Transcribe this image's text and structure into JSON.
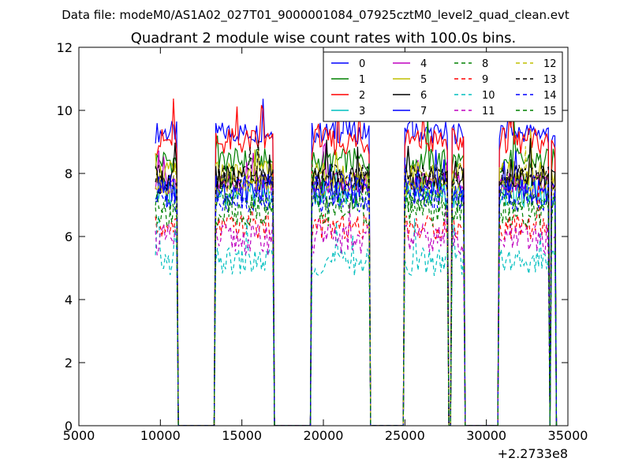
{
  "chart_data": {
    "type": "line",
    "suptitle": "Data file: modeM0/AS1A02_027T01_9000001084_07925cztM0_level2_quad_clean.evt",
    "title": "Quadrant 2 module wise count rates with 100.0s bins.",
    "xlabel": "",
    "ylabel": "",
    "xlim": [
      5000,
      35000
    ],
    "ylim": [
      0,
      12
    ],
    "x_ticks": [
      5000,
      10000,
      15000,
      20000,
      25000,
      30000,
      35000
    ],
    "x_tick_labels": [
      "5000",
      "10000",
      "15000",
      "20000",
      "25000",
      "30000",
      "35000"
    ],
    "y_ticks": [
      0,
      2,
      4,
      6,
      8,
      10,
      12
    ],
    "y_tick_labels": [
      "0",
      "2",
      "4",
      "6",
      "8",
      "10",
      "12"
    ],
    "x_offset_label": "+2.2733e8",
    "grid": false,
    "legend_position": "top-right",
    "legend_columns": 4,
    "segments": [
      {
        "start": 9700,
        "end": 11000
      },
      {
        "start": 13400,
        "end": 16900
      },
      {
        "start": 19300,
        "end": 22800
      },
      {
        "start": 25000,
        "end": 27600
      },
      {
        "start": 27900,
        "end": 28600
      },
      {
        "start": 30800,
        "end": 33800
      },
      {
        "start": 34000,
        "end": 34200
      }
    ],
    "series": [
      {
        "name": "0",
        "level": 9.3,
        "color": "#0000ff",
        "dash": "solid"
      },
      {
        "name": "1",
        "level": 8.4,
        "color": "#008000",
        "dash": "solid"
      },
      {
        "name": "2",
        "level": 9.0,
        "color": "#ff0000",
        "dash": "solid"
      },
      {
        "name": "3",
        "level": 7.4,
        "color": "#00bfbf",
        "dash": "solid"
      },
      {
        "name": "4",
        "level": 7.7,
        "color": "#bf00bf",
        "dash": "solid"
      },
      {
        "name": "5",
        "level": 8.0,
        "color": "#bfbf00",
        "dash": "solid"
      },
      {
        "name": "6",
        "level": 7.8,
        "color": "#000000",
        "dash": "solid"
      },
      {
        "name": "7",
        "level": 7.5,
        "color": "#0000ff",
        "dash": "solid"
      },
      {
        "name": "8",
        "level": 7.1,
        "color": "#008000",
        "dash": "dashed"
      },
      {
        "name": "9",
        "level": 6.3,
        "color": "#ff0000",
        "dash": "dashed"
      },
      {
        "name": "10",
        "level": 5.2,
        "color": "#00bfbf",
        "dash": "dashed"
      },
      {
        "name": "11",
        "level": 5.9,
        "color": "#bf00bf",
        "dash": "dashed"
      },
      {
        "name": "12",
        "level": 7.6,
        "color": "#bfbf00",
        "dash": "dashed"
      },
      {
        "name": "13",
        "level": 7.9,
        "color": "#000000",
        "dash": "dashed"
      },
      {
        "name": "14",
        "level": 7.2,
        "color": "#0000ff",
        "dash": "dashed"
      },
      {
        "name": "15",
        "level": 6.8,
        "color": "#008000",
        "dash": "dashed"
      }
    ]
  }
}
